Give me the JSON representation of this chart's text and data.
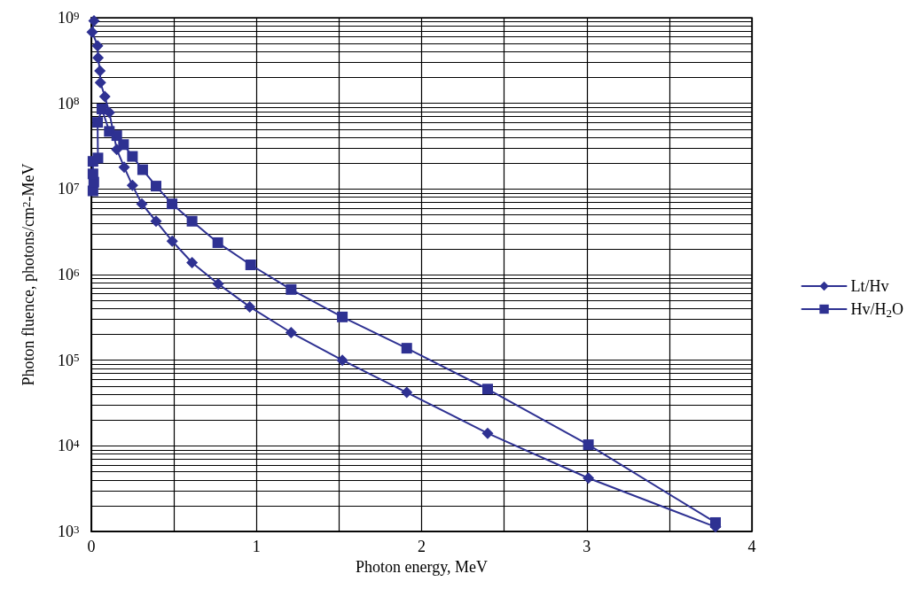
{
  "chart_data": {
    "type": "line",
    "xlabel": "Photon energy, MeV",
    "ylabel": "Photon fluence, photons/cm$^{2}$-MeV",
    "log": "y",
    "grid": true,
    "legend": "right",
    "line_style": "solid",
    "xlim": [
      0,
      4
    ],
    "xticks": [
      0,
      {
        "value": 0.5,
        "label": null
      },
      1,
      {
        "value": 1.5,
        "label": null
      },
      2,
      {
        "value": 2.5,
        "label": null
      },
      3,
      {
        "value": 3.5,
        "label": null
      },
      4
    ],
    "ylim": [
      1000,
      1000000000
    ],
    "yticks": [
      {
        "value": 1000,
        "label": "10$^{3}$"
      },
      {
        "value": 2000,
        "label": null
      },
      {
        "value": 3000,
        "label": null
      },
      {
        "value": 4000,
        "label": null
      },
      {
        "value": 5000,
        "label": null
      },
      {
        "value": 6000,
        "label": null
      },
      {
        "value": 7000,
        "label": null
      },
      {
        "value": 8000,
        "label": null
      },
      {
        "value": 9000,
        "label": null
      },
      {
        "value": 10000,
        "label": "10$^{4}$"
      },
      {
        "value": 20000,
        "label": null
      },
      {
        "value": 30000,
        "label": null
      },
      {
        "value": 40000,
        "label": null
      },
      {
        "value": 50000,
        "label": null
      },
      {
        "value": 60000,
        "label": null
      },
      {
        "value": 70000,
        "label": null
      },
      {
        "value": 80000,
        "label": null
      },
      {
        "value": 90000,
        "label": null
      },
      {
        "value": 100000,
        "label": "10$^{5}$"
      },
      {
        "value": 200000,
        "label": null
      },
      {
        "value": 300000,
        "label": null
      },
      {
        "value": 400000,
        "label": null
      },
      {
        "value": 500000,
        "label": null
      },
      {
        "value": 600000,
        "label": null
      },
      {
        "value": 700000,
        "label": null
      },
      {
        "value": 800000,
        "label": null
      },
      {
        "value": 900000,
        "label": null
      },
      {
        "value": 1000000,
        "label": "10$^{6}$"
      },
      {
        "value": 2000000,
        "label": null
      },
      {
        "value": 3000000,
        "label": null
      },
      {
        "value": 4000000,
        "label": null
      },
      {
        "value": 5000000,
        "label": null
      },
      {
        "value": 6000000,
        "label": null
      },
      {
        "value": 7000000,
        "label": null
      },
      {
        "value": 8000000,
        "label": null
      },
      {
        "value": 9000000,
        "label": null
      },
      {
        "value": 10000000,
        "label": "10$^{7}$"
      },
      {
        "value": 20000000,
        "label": null
      },
      {
        "value": 30000000,
        "label": null
      },
      {
        "value": 40000000,
        "label": null
      },
      {
        "value": 50000000,
        "label": null
      },
      {
        "value": 60000000,
        "label": null
      },
      {
        "value": 70000000,
        "label": null
      },
      {
        "value": 80000000,
        "label": null
      },
      {
        "value": 90000000,
        "label": null
      },
      {
        "value": 100000000,
        "label": "10$^{8}$"
      },
      {
        "value": 200000000,
        "label": null
      },
      {
        "value": 300000000,
        "label": null
      },
      {
        "value": 400000000,
        "label": null
      },
      {
        "value": 500000000,
        "label": null
      },
      {
        "value": 600000000,
        "label": null
      },
      {
        "value": 700000000,
        "label": null
      },
      {
        "value": 800000000,
        "label": null
      },
      {
        "value": 900000000,
        "label": null
      },
      {
        "value": 1000000000,
        "label": "10$^{9}$"
      }
    ],
    "series": [
      {
        "name": "Lt/Hv",
        "color": "#2e3192",
        "marker": "diamond",
        "x": [
          0.016,
          0.005,
          0.038,
          0.041,
          0.052,
          0.055,
          0.082,
          0.109,
          0.154,
          0.199,
          0.249,
          0.306,
          0.392,
          0.49,
          0.61,
          0.768,
          0.959,
          1.21,
          1.52,
          1.91,
          2.4,
          3.01,
          3.78
        ],
        "values": [
          920000000,
          680000000,
          470000000,
          340000000,
          240000000,
          175000000,
          120000000,
          78000000,
          29000000,
          18000000,
          11000000,
          6700000,
          4200000,
          2460000,
          1380000,
          780000,
          420000,
          210000,
          100000,
          42000,
          14000,
          4200,
          1130
        ]
      },
      {
        "name": "Hv/H$_{2}$O",
        "color": "#2e3192",
        "marker": "square",
        "x": [
          0.01,
          0.015,
          0.01,
          0.01,
          0.04,
          0.038,
          0.064,
          0.109,
          0.154,
          0.195,
          0.249,
          0.311,
          0.392,
          0.489,
          0.61,
          0.766,
          0.965,
          1.21,
          1.52,
          1.91,
          2.4,
          3.01,
          3.78
        ],
        "values": [
          9500000,
          12000000,
          15000000,
          21000000,
          23000000,
          60000000,
          86000000,
          47000000,
          42000000,
          33000000,
          24000000,
          16800000,
          10800000,
          6700000,
          4200000,
          2360000,
          1300000,
          670000,
          320000,
          138000,
          46000,
          10300,
          1270
        ]
      }
    ]
  }
}
